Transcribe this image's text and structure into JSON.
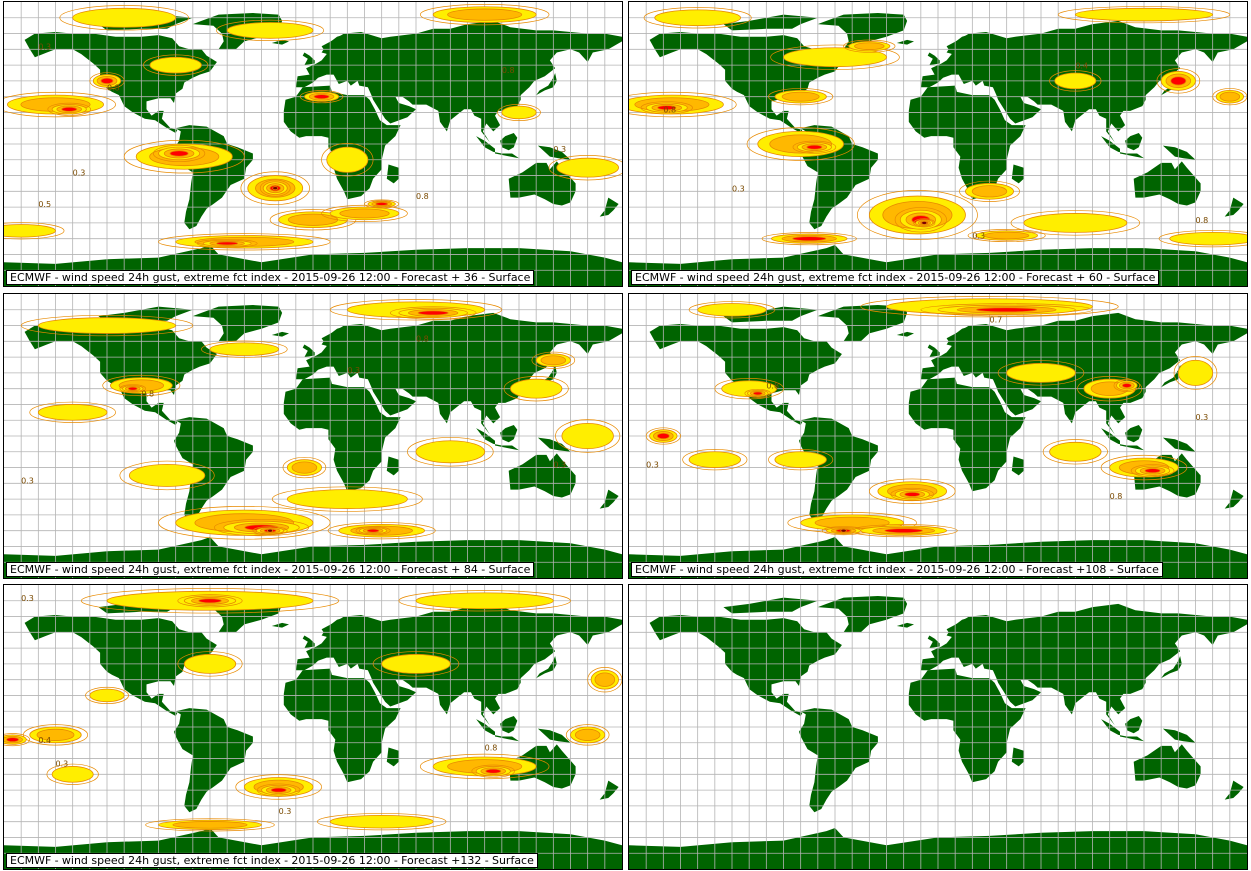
{
  "colors": {
    "land": "#006400",
    "grid": "#b4b4b4",
    "contour": "#e88a00",
    "level1": "#ffee00",
    "level2": "#ffb800",
    "level3": "#ff0000",
    "level4": "#7a0000"
  },
  "panels": [
    {
      "id": "fc36",
      "model": "ECMWF",
      "field": "wind speed 24h gust, extreme fct index",
      "base_time": "2015-09-26 12:00",
      "step": "Forecast + 36",
      "level": "Surface",
      "blobs": [
        [
          -150,
          25,
          28,
          6,
          2
        ],
        [
          -142,
          22,
          10,
          3,
          3
        ],
        [
          -75,
          -8,
          28,
          8,
          2
        ],
        [
          -78,
          -6,
          12,
          4,
          3
        ],
        [
          -22,
          -28,
          16,
          8,
          3
        ],
        [
          -22,
          -28,
          7,
          4,
          4
        ],
        [
          -40,
          -62,
          40,
          4,
          2
        ],
        [
          -50,
          -63,
          14,
          2,
          3
        ],
        [
          0,
          -48,
          20,
          5,
          2
        ],
        [
          30,
          -44,
          20,
          4,
          2
        ],
        [
          40,
          -38,
          8,
          2,
          3
        ],
        [
          -110,
          80,
          30,
          6,
          1
        ],
        [
          100,
          82,
          30,
          5,
          2
        ],
        [
          -25,
          72,
          25,
          5,
          1
        ],
        [
          -80,
          50,
          15,
          5,
          1
        ],
        [
          5,
          30,
          10,
          3,
          3
        ],
        [
          20,
          -10,
          12,
          8,
          1
        ],
        [
          -170,
          -55,
          20,
          4,
          1
        ],
        [
          160,
          -15,
          18,
          6,
          1
        ],
        [
          120,
          20,
          10,
          4,
          1
        ],
        [
          -120,
          40,
          8,
          4,
          3
        ]
      ],
      "labels": [
        [
          "0.8",
          -120,
          34
        ],
        [
          "0.3",
          -160,
          60
        ],
        [
          "0.5",
          -160,
          -40
        ],
        [
          "0.8",
          60,
          -35
        ],
        [
          "0.3",
          140,
          -5
        ],
        [
          "0.8",
          110,
          45
        ],
        [
          "0.3",
          -140,
          -20
        ]
      ]
    },
    {
      "id": "fc60",
      "model": "ECMWF",
      "field": "wind speed 24h gust, extreme fct index",
      "base_time": "2015-09-26 12:00",
      "step": "Forecast + 60",
      "level": "Surface",
      "blobs": [
        [
          -155,
          25,
          30,
          6,
          2
        ],
        [
          -158,
          23,
          12,
          3,
          3
        ],
        [
          -80,
          0,
          25,
          8,
          2
        ],
        [
          -72,
          -2,
          10,
          3,
          3
        ],
        [
          -80,
          30,
          15,
          4,
          2
        ],
        [
          -12,
          -45,
          28,
          12,
          2
        ],
        [
          -10,
          -48,
          12,
          6,
          3
        ],
        [
          -8,
          -50,
          5,
          2,
          4
        ],
        [
          30,
          -30,
          14,
          5,
          2
        ],
        [
          80,
          -50,
          30,
          6,
          1
        ],
        [
          -75,
          -60,
          22,
          3,
          3
        ],
        [
          40,
          -58,
          18,
          3,
          2
        ],
        [
          160,
          -60,
          25,
          4,
          1
        ],
        [
          -140,
          80,
          25,
          5,
          1
        ],
        [
          120,
          82,
          40,
          4,
          1
        ],
        [
          -60,
          55,
          30,
          6,
          1
        ],
        [
          140,
          40,
          10,
          6,
          3
        ],
        [
          80,
          40,
          12,
          5,
          1
        ],
        [
          170,
          30,
          8,
          4,
          2
        ],
        [
          -40,
          62,
          12,
          3,
          2
        ]
      ],
      "labels": [
        [
          "0.8",
          -160,
          20
        ],
        [
          "0.3",
          -120,
          -30
        ],
        [
          "0.8",
          150,
          -50
        ],
        [
          "0.3",
          20,
          -60
        ],
        [
          "0.4",
          80,
          48
        ]
      ]
    },
    {
      "id": "fc84",
      "model": "ECMWF",
      "field": "wind speed 24h gust, extreme fct index",
      "base_time": "2015-09-26 12:00",
      "step": "Forecast + 84",
      "level": "Surface",
      "blobs": [
        [
          -140,
          15,
          20,
          5,
          1
        ],
        [
          -100,
          32,
          18,
          5,
          2
        ],
        [
          -105,
          30,
          6,
          2,
          3
        ],
        [
          -85,
          -25,
          22,
          7,
          1
        ],
        [
          -40,
          -55,
          40,
          8,
          2
        ],
        [
          -30,
          -58,
          22,
          4,
          3
        ],
        [
          -25,
          -60,
          8,
          2,
          4
        ],
        [
          20,
          -40,
          35,
          6,
          1
        ],
        [
          40,
          -60,
          25,
          4,
          2
        ],
        [
          35,
          -60,
          8,
          2,
          3
        ],
        [
          -5,
          -20,
          10,
          5,
          2
        ],
        [
          80,
          -10,
          20,
          7,
          1
        ],
        [
          130,
          30,
          15,
          6,
          1
        ],
        [
          140,
          48,
          10,
          4,
          2
        ],
        [
          60,
          80,
          40,
          5,
          1
        ],
        [
          70,
          78,
          20,
          3,
          3
        ],
        [
          -120,
          70,
          40,
          5,
          1
        ],
        [
          -40,
          55,
          20,
          4,
          1
        ],
        [
          160,
          0,
          15,
          8,
          1
        ]
      ],
      "labels": [
        [
          "0.8",
          -100,
          25
        ],
        [
          "0.3",
          -170,
          -30
        ],
        [
          "0.3",
          140,
          -20
        ],
        [
          "0.3",
          20,
          40
        ],
        [
          "0.8",
          60,
          60
        ]
      ]
    },
    {
      "id": "fc108",
      "model": "ECMWF",
      "field": "wind speed 24h gust, extreme fct index",
      "base_time": "2015-09-26 12:00",
      "step": "Forecast +108",
      "level": "Surface",
      "blobs": [
        [
          30,
          82,
          60,
          5,
          1
        ],
        [
          40,
          80,
          40,
          3,
          3
        ],
        [
          -120,
          80,
          20,
          4,
          1
        ],
        [
          -110,
          30,
          16,
          5,
          1
        ],
        [
          -105,
          27,
          6,
          2,
          3
        ],
        [
          -160,
          0,
          8,
          4,
          3
        ],
        [
          -130,
          -15,
          15,
          5,
          1
        ],
        [
          -80,
          -15,
          15,
          5,
          1
        ],
        [
          -15,
          -35,
          20,
          6,
          2
        ],
        [
          -15,
          -37,
          10,
          3,
          3
        ],
        [
          120,
          -20,
          20,
          6,
          2
        ],
        [
          125,
          -22,
          10,
          3,
          3
        ],
        [
          -50,
          -55,
          30,
          5,
          2
        ],
        [
          -55,
          -60,
          10,
          2,
          4
        ],
        [
          -20,
          -60,
          25,
          3,
          3
        ],
        [
          100,
          30,
          15,
          6,
          2
        ],
        [
          110,
          32,
          6,
          3,
          3
        ],
        [
          150,
          40,
          10,
          8,
          1
        ],
        [
          60,
          40,
          20,
          6,
          1
        ],
        [
          80,
          -10,
          15,
          6,
          1
        ]
      ],
      "labels": [
        [
          "0.8",
          -100,
          30
        ],
        [
          "0.7",
          30,
          72
        ],
        [
          "0.3",
          -170,
          -20
        ],
        [
          "0.8",
          100,
          -40
        ],
        [
          "0.3",
          150,
          10
        ]
      ]
    },
    {
      "id": "fc132",
      "model": "ECMWF",
      "field": "wind speed 24h gust, extreme fct index",
      "base_time": "2015-09-26 12:00",
      "step": "Forecast +132",
      "level": "Surface",
      "blobs": [
        [
          -60,
          80,
          60,
          6,
          1
        ],
        [
          -60,
          80,
          15,
          3,
          3
        ],
        [
          100,
          80,
          40,
          5,
          1
        ],
        [
          -150,
          -5,
          15,
          5,
          2
        ],
        [
          -175,
          -8,
          8,
          3,
          3
        ],
        [
          -120,
          20,
          10,
          4,
          1
        ],
        [
          -20,
          -38,
          20,
          6,
          2
        ],
        [
          -20,
          -40,
          10,
          3,
          3
        ],
        [
          100,
          -25,
          30,
          6,
          2
        ],
        [
          105,
          -28,
          10,
          3,
          3
        ],
        [
          40,
          -60,
          30,
          4,
          1
        ],
        [
          -60,
          -62,
          30,
          3,
          2
        ],
        [
          -60,
          40,
          15,
          6,
          1
        ],
        [
          60,
          40,
          20,
          6,
          1
        ],
        [
          170,
          30,
          8,
          6,
          2
        ],
        [
          160,
          -5,
          10,
          5,
          2
        ],
        [
          -140,
          -30,
          12,
          5,
          1
        ]
      ],
      "labels": [
        [
          "0.3",
          -170,
          80
        ],
        [
          "0.3",
          -150,
          -25
        ],
        [
          "0.8",
          100,
          -15
        ],
        [
          "0.3",
          -20,
          -55
        ],
        [
          "0.4",
          -160,
          -10
        ]
      ]
    },
    {
      "id": "blank",
      "blobs": [],
      "labels": []
    }
  ]
}
